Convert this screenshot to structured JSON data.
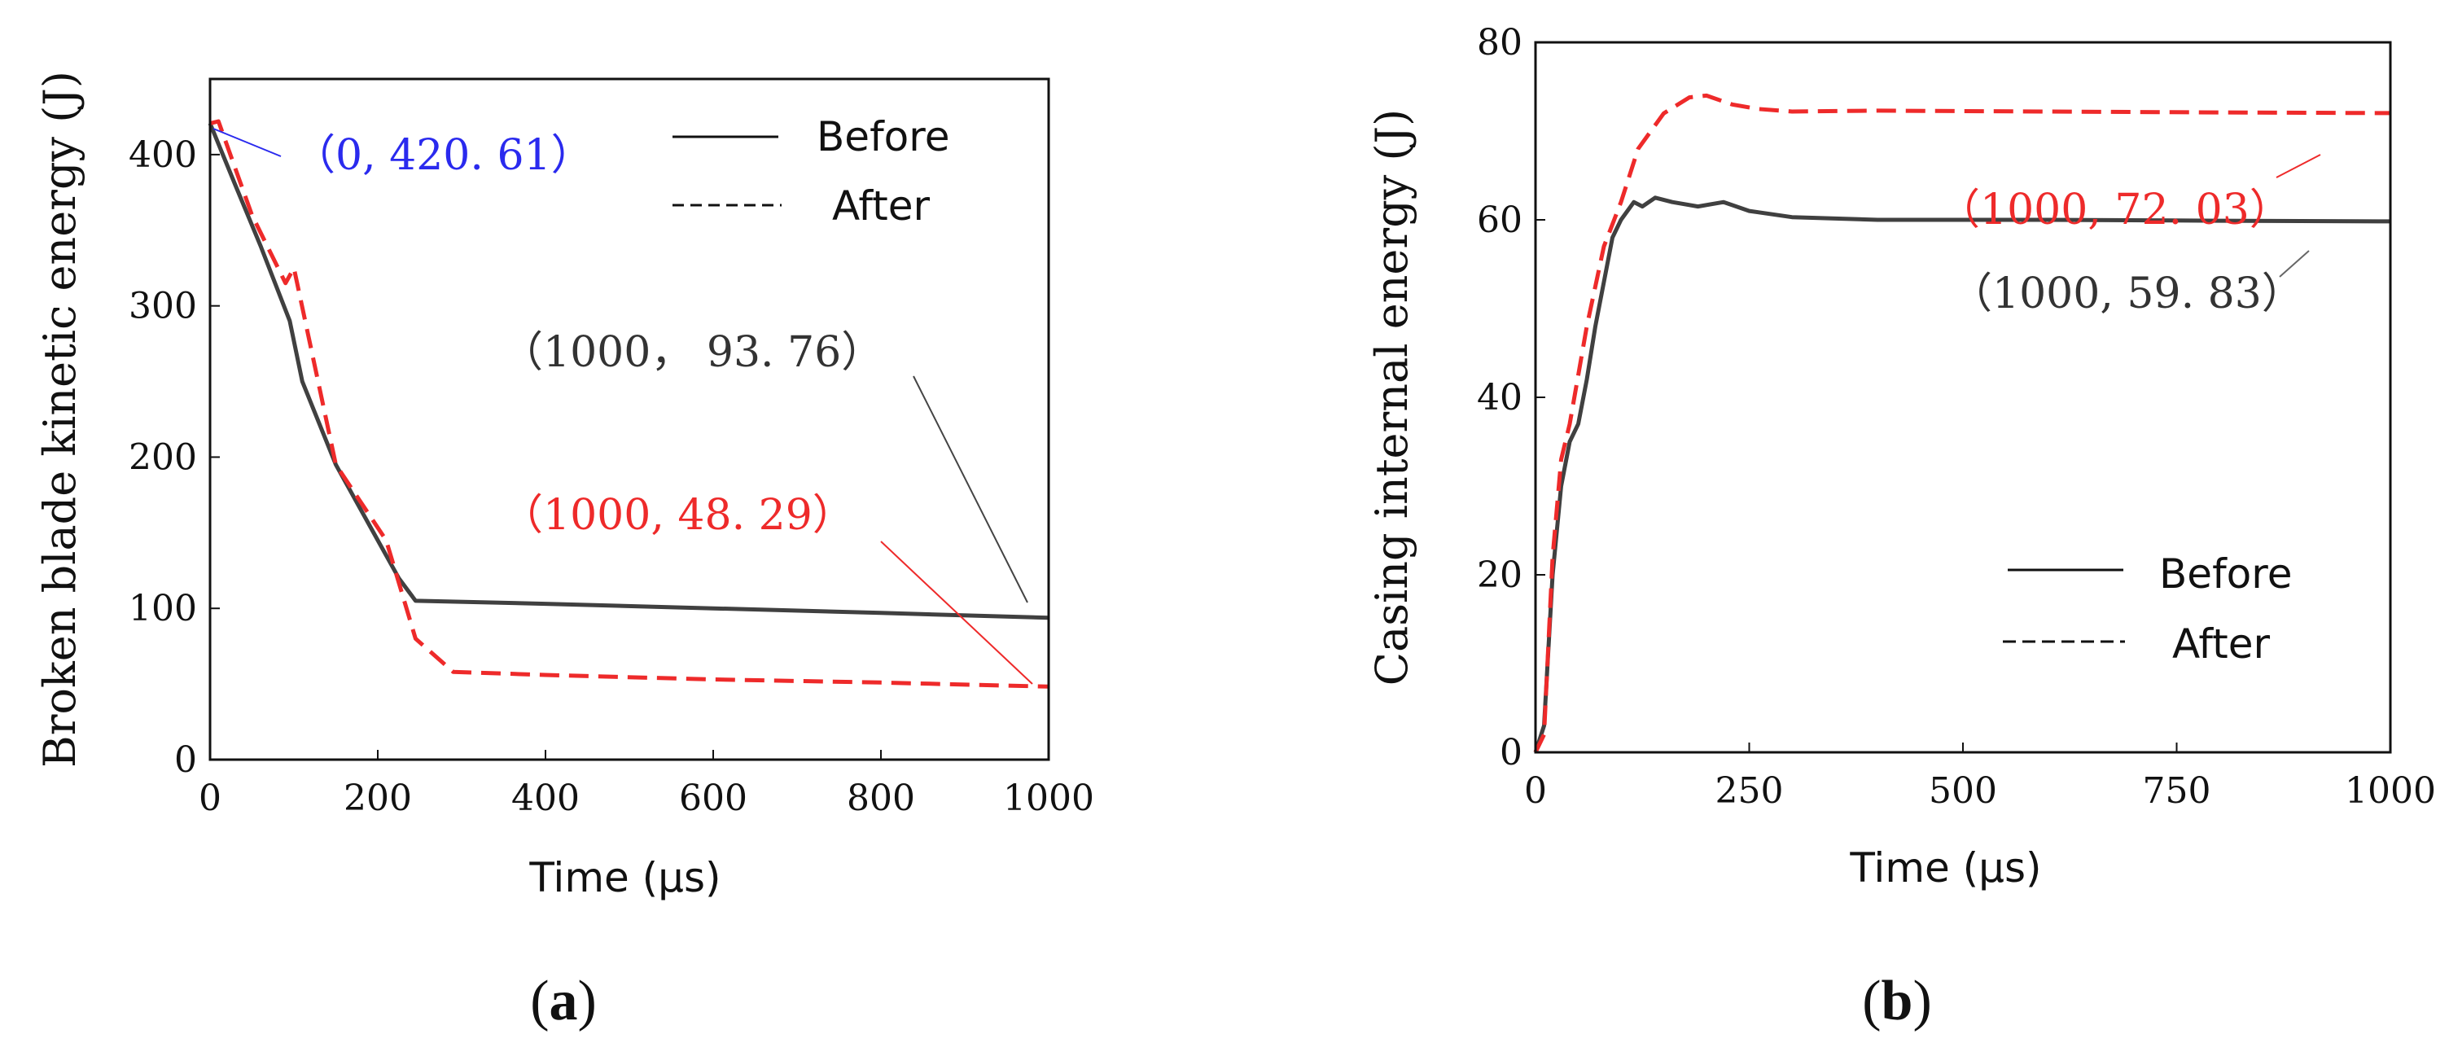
{
  "colors": {
    "before": "#404040",
    "after": "#ee2a2a",
    "blue": "#2a2aee",
    "axis": "#111111"
  },
  "chart_data": [
    {
      "type": "line",
      "caption_letter": "a",
      "xlabel": "Time (µs)",
      "ylabel": "Broken blade kinetic energy (J)",
      "xlim": [
        0,
        1000
      ],
      "ylim": [
        0,
        450
      ],
      "xticks": [
        0,
        200,
        400,
        600,
        800,
        1000
      ],
      "yticks": [
        0,
        100,
        200,
        300,
        400
      ],
      "legend": [
        {
          "label": "Before",
          "style": "solid"
        },
        {
          "label": "After",
          "style": "dashed"
        }
      ],
      "series": [
        {
          "name": "Before",
          "style": "solid",
          "x": [
            0,
            30,
            60,
            95,
            110,
            150,
            190,
            225,
            245,
            400,
            600,
            800,
            1000
          ],
          "y": [
            420.61,
            380,
            340,
            290,
            250,
            195,
            155,
            120,
            105,
            103,
            100,
            97,
            93.76
          ]
        },
        {
          "name": "After",
          "style": "dashed",
          "x": [
            0,
            10,
            50,
            90,
            100,
            150,
            210,
            245,
            290,
            400,
            600,
            800,
            1000
          ],
          "y": [
            420.61,
            422,
            360,
            315,
            325,
            195,
            145,
            80,
            58,
            56,
            53,
            51,
            48.29
          ]
        }
      ],
      "annotations": [
        {
          "text": "（0, 420. 61）",
          "color": "blue"
        },
        {
          "text": "（1000， 93. 76）",
          "color": "before"
        },
        {
          "text": "（1000, 48. 29）",
          "color": "after"
        }
      ]
    },
    {
      "type": "line",
      "caption_letter": "b",
      "xlabel": "Time (µs)",
      "ylabel": "Casing internal energy (J)",
      "xlim": [
        0,
        1000
      ],
      "ylim": [
        0,
        80
      ],
      "xticks": [
        0,
        250,
        500,
        750,
        1000
      ],
      "yticks": [
        0,
        20,
        40,
        60,
        80
      ],
      "legend": [
        {
          "label": "Before",
          "style": "solid"
        },
        {
          "label": "After",
          "style": "dashed"
        }
      ],
      "series": [
        {
          "name": "Before",
          "style": "solid",
          "x": [
            0,
            10,
            20,
            30,
            40,
            50,
            60,
            70,
            80,
            90,
            100,
            115,
            125,
            140,
            160,
            190,
            220,
            250,
            300,
            400,
            600,
            800,
            1000
          ],
          "y": [
            0,
            3,
            20,
            30,
            35,
            37,
            42,
            48,
            53,
            58,
            60,
            62,
            61.5,
            62.5,
            62,
            61.5,
            62,
            61,
            60.3,
            60,
            60,
            59.9,
            59.83
          ]
        },
        {
          "name": "After",
          "style": "dashed",
          "x": [
            0,
            10,
            20,
            30,
            40,
            60,
            80,
            100,
            120,
            150,
            180,
            200,
            230,
            260,
            300,
            400,
            600,
            800,
            1000
          ],
          "y": [
            0,
            2,
            22,
            33,
            37,
            48,
            57,
            62,
            68,
            72,
            73.8,
            74,
            73,
            72.5,
            72.2,
            72.3,
            72.2,
            72.1,
            72.03
          ]
        }
      ],
      "annotations": [
        {
          "text": "（1000,  72. 03）",
          "color": "after"
        },
        {
          "text": "（1000,  59. 83）",
          "color": "before"
        }
      ]
    }
  ]
}
